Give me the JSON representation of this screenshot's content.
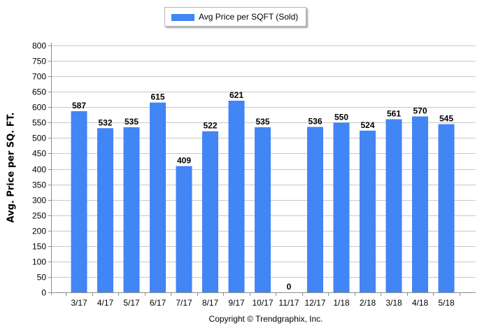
{
  "legend": {
    "series_label": "Avg Price per SQFT (Sold)"
  },
  "footer": {
    "copyright": "Copyright © Trendgraphix, Inc."
  },
  "colors": {
    "bar": "#4285f4",
    "grid": "#c8c8c8"
  },
  "chart_data": {
    "type": "bar",
    "categories": [
      "3/17",
      "4/17",
      "5/17",
      "6/17",
      "7/17",
      "8/17",
      "9/17",
      "10/17",
      "11/17",
      "12/17",
      "1/18",
      "2/18",
      "3/18",
      "4/18",
      "5/18"
    ],
    "series": [
      {
        "name": "Avg Price per SQFT (Sold)",
        "values": [
          587,
          532,
          535,
          615,
          409,
          522,
          621,
          535,
          0,
          536,
          550,
          524,
          561,
          570,
          545
        ]
      }
    ],
    "ylabel": "Avg. Price per SQ. FT.",
    "xlabel": "",
    "ylim": [
      0,
      800
    ],
    "yticks": [
      0,
      50,
      100,
      150,
      200,
      250,
      300,
      350,
      400,
      450,
      500,
      550,
      600,
      650,
      700,
      750,
      800
    ],
    "grid": "horizontal",
    "legend_position": "top-center",
    "data_labels": true
  }
}
